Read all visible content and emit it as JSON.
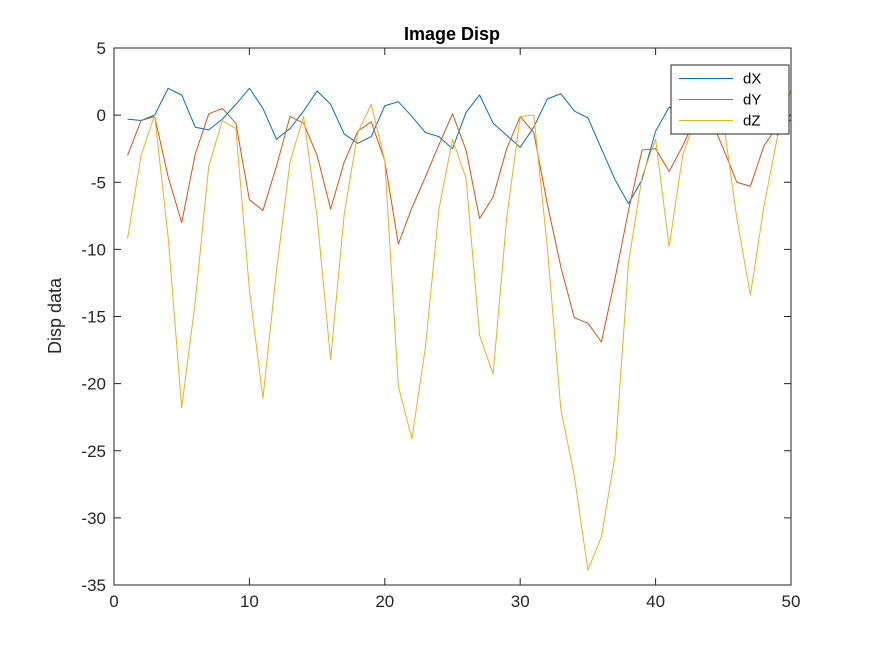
{
  "chart_data": {
    "type": "line",
    "title": "Image Disp",
    "xlabel": "",
    "ylabel": "Disp data",
    "xlim": [
      0,
      50
    ],
    "ylim": [
      -35,
      5
    ],
    "xticks": [
      0,
      10,
      20,
      30,
      40,
      50
    ],
    "yticks": [
      5,
      0,
      -5,
      -10,
      -15,
      -20,
      -25,
      -30,
      -35
    ],
    "grid": false,
    "legend_position": "top-right",
    "x": [
      1,
      2,
      3,
      4,
      5,
      6,
      7,
      8,
      9,
      10,
      11,
      12,
      13,
      14,
      15,
      16,
      17,
      18,
      19,
      20,
      21,
      22,
      23,
      24,
      25,
      26,
      27,
      28,
      29,
      30,
      31,
      32,
      33,
      34,
      35,
      36,
      37,
      38,
      39,
      40,
      41,
      42,
      43,
      44,
      45,
      46,
      47,
      48,
      49,
      50
    ],
    "series": [
      {
        "name": "dX",
        "color": "#0072BD",
        "values": [
          -0.3,
          -0.4,
          0.0,
          2.0,
          1.5,
          -0.9,
          -1.1,
          -0.3,
          0.8,
          2.0,
          0.5,
          -1.8,
          -1.0,
          0.3,
          1.8,
          0.8,
          -1.4,
          -2.1,
          -1.6,
          0.7,
          1.0,
          -0.1,
          -1.3,
          -1.6,
          -2.5,
          0.2,
          1.5,
          -0.6,
          -1.5,
          -2.4,
          -0.9,
          1.2,
          1.6,
          0.3,
          -0.2,
          -2.5,
          -4.8,
          -6.6,
          -4.8,
          -1.2,
          0.6,
          0.0,
          -0.1,
          0.1,
          0.0,
          0.0,
          -0.1,
          0.3,
          -1.5,
          -0.3
        ]
      },
      {
        "name": "dY",
        "color": "#D95319",
        "values": [
          -3.0,
          -0.4,
          -0.1,
          -4.6,
          -8.0,
          -2.9,
          0.1,
          0.5,
          -0.6,
          -6.3,
          -7.1,
          -3.8,
          -0.1,
          -0.6,
          -3.0,
          -7.0,
          -3.5,
          -1.2,
          -0.5,
          -3.4,
          -9.6,
          -6.9,
          -4.6,
          -2.2,
          0.1,
          -2.6,
          -7.7,
          -6.1,
          -2.5,
          -0.1,
          -1.3,
          -6.6,
          -11.3,
          -15.1,
          -15.5,
          -16.9,
          -12.2,
          -7.1,
          -2.6,
          -2.5,
          -4.2,
          -2.3,
          -0.1,
          -0.1,
          -2.5,
          -5.0,
          -5.3,
          -2.3,
          -0.8,
          0.0
        ]
      },
      {
        "name": "dZ",
        "color": "#EDB120",
        "values": [
          -9.2,
          -3.0,
          0.0,
          -9.1,
          -21.8,
          -13.9,
          -3.8,
          -0.4,
          -1.0,
          -13.0,
          -21.1,
          -11.6,
          -3.5,
          -0.1,
          -7.6,
          -18.2,
          -7.4,
          -1.3,
          0.8,
          -3.4,
          -20.2,
          -24.1,
          -17.3,
          -7.0,
          -1.8,
          -4.7,
          -16.4,
          -19.3,
          -7.7,
          -0.1,
          0.0,
          -9.8,
          -21.9,
          -26.9,
          -33.9,
          -31.4,
          -25.4,
          -11.0,
          -4.6,
          -1.8,
          -9.8,
          -3.0,
          -0.1,
          0.0,
          -0.4,
          -7.7,
          -13.4,
          -6.8,
          -1.6,
          1.9
        ]
      }
    ]
  }
}
